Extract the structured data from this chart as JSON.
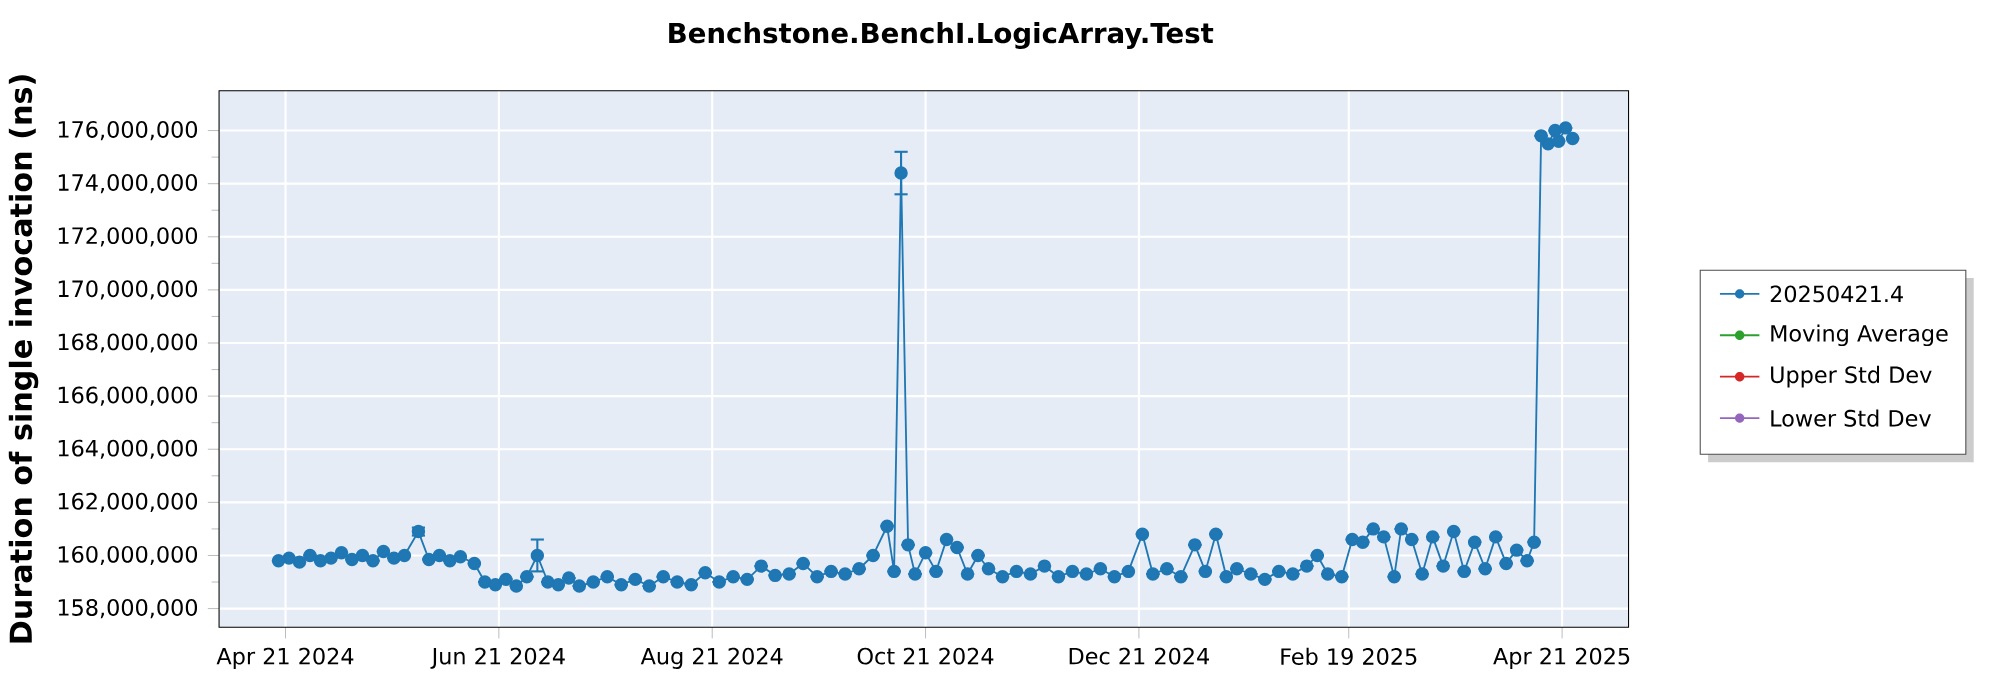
{
  "chart_data": {
    "type": "line",
    "title": "Benchstone.BenchI.LogicArray.Test",
    "ylabel": "Duration of single invocation (ns)",
    "x": [
      "2024-04-19",
      "2024-04-22",
      "2024-04-25",
      "2024-04-28",
      "2024-05-01",
      "2024-05-04",
      "2024-05-07",
      "2024-05-10",
      "2024-05-13",
      "2024-05-16",
      "2024-05-19",
      "2024-05-22",
      "2024-05-25",
      "2024-05-29",
      "2024-06-01",
      "2024-06-04",
      "2024-06-07",
      "2024-06-10",
      "2024-06-14",
      "2024-06-17",
      "2024-06-20",
      "2024-06-23",
      "2024-06-26",
      "2024-06-29",
      "2024-07-02",
      "2024-07-05",
      "2024-07-08",
      "2024-07-11",
      "2024-07-14",
      "2024-07-18",
      "2024-07-22",
      "2024-07-26",
      "2024-07-30",
      "2024-08-03",
      "2024-08-07",
      "2024-08-11",
      "2024-08-15",
      "2024-08-19",
      "2024-08-23",
      "2024-08-27",
      "2024-08-31",
      "2024-09-04",
      "2024-09-08",
      "2024-09-12",
      "2024-09-16",
      "2024-09-20",
      "2024-09-24",
      "2024-09-28",
      "2024-10-02",
      "2024-10-06",
      "2024-10-10",
      "2024-10-12",
      "2024-10-14",
      "2024-10-16",
      "2024-10-18",
      "2024-10-21",
      "2024-10-24",
      "2024-10-27",
      "2024-10-30",
      "2024-11-02",
      "2024-11-05",
      "2024-11-08",
      "2024-11-12",
      "2024-11-16",
      "2024-11-20",
      "2024-11-24",
      "2024-11-28",
      "2024-12-02",
      "2024-12-06",
      "2024-12-10",
      "2024-12-14",
      "2024-12-18",
      "2024-12-22",
      "2024-12-25",
      "2024-12-29",
      "2025-01-02",
      "2025-01-06",
      "2025-01-09",
      "2025-01-12",
      "2025-01-15",
      "2025-01-18",
      "2025-01-22",
      "2025-01-26",
      "2025-01-30",
      "2025-02-03",
      "2025-02-07",
      "2025-02-10",
      "2025-02-13",
      "2025-02-17",
      "2025-02-20",
      "2025-02-23",
      "2025-02-26",
      "2025-03-01",
      "2025-03-04",
      "2025-03-06",
      "2025-03-09",
      "2025-03-12",
      "2025-03-15",
      "2025-03-18",
      "2025-03-21",
      "2025-03-24",
      "2025-03-27",
      "2025-03-30",
      "2025-04-02",
      "2025-04-05",
      "2025-04-08",
      "2025-04-11",
      "2025-04-13",
      "2025-04-15",
      "2025-04-17",
      "2025-04-19",
      "2025-04-20",
      "2025-04-22",
      "2025-04-24"
    ],
    "series": [
      {
        "name": "20250421.4",
        "color": "#1f77b4",
        "values": [
          159800000,
          159900000,
          159750000,
          160000000,
          159800000,
          159900000,
          160100000,
          159850000,
          160000000,
          159800000,
          160150000,
          159900000,
          160000000,
          160900000,
          159850000,
          160000000,
          159800000,
          159950000,
          159700000,
          159000000,
          158900000,
          159100000,
          158850000,
          159200000,
          160000000,
          159000000,
          158900000,
          159150000,
          158850000,
          159000000,
          159200000,
          158900000,
          159100000,
          158850000,
          159200000,
          159000000,
          158900000,
          159350000,
          159000000,
          159200000,
          159100000,
          159600000,
          159250000,
          159300000,
          159700000,
          159200000,
          159400000,
          159300000,
          159500000,
          160000000,
          161100000,
          159400000,
          174400000,
          160400000,
          159300000,
          160100000,
          159400000,
          160600000,
          160300000,
          159300000,
          160000000,
          159500000,
          159200000,
          159400000,
          159300000,
          159600000,
          159200000,
          159400000,
          159300000,
          159500000,
          159200000,
          159400000,
          160800000,
          159300000,
          159500000,
          159200000,
          160400000,
          159400000,
          160800000,
          159200000,
          159500000,
          159300000,
          159100000,
          159400000,
          159300000,
          159600000,
          160000000,
          159300000,
          159200000,
          160600000,
          160500000,
          161000000,
          160700000,
          159200000,
          161000000,
          160600000,
          159300000,
          160700000,
          159600000,
          160900000,
          159400000,
          160500000,
          159500000,
          160700000,
          159700000,
          160200000,
          159800000,
          160500000,
          175800000,
          175500000,
          176000000,
          175600000,
          176100000,
          175700000
        ],
        "errors": [
          null,
          null,
          null,
          null,
          null,
          null,
          null,
          null,
          null,
          null,
          null,
          null,
          null,
          150000,
          null,
          null,
          null,
          null,
          null,
          null,
          null,
          null,
          null,
          null,
          600000,
          null,
          null,
          null,
          null,
          null,
          null,
          null,
          null,
          null,
          null,
          null,
          null,
          null,
          null,
          null,
          null,
          null,
          null,
          null,
          null,
          null,
          null,
          null,
          null,
          null,
          null,
          null,
          800000,
          null,
          null,
          null,
          null,
          null,
          null,
          null,
          null,
          null,
          null,
          null,
          null,
          null,
          null,
          null,
          null,
          null,
          null,
          null,
          null,
          null,
          null,
          null,
          null,
          null,
          null,
          null,
          null,
          null,
          null,
          null,
          null,
          null,
          null,
          null,
          null,
          null,
          null,
          null,
          null,
          null,
          null,
          null,
          null,
          null,
          null,
          null,
          null,
          null,
          null,
          null,
          null,
          null,
          null,
          null,
          null,
          null,
          null,
          null,
          null,
          null
        ]
      },
      {
        "name": "Moving Average",
        "color": "#2ca02c",
        "values": [
          null,
          null,
          null,
          null,
          null,
          null,
          null,
          null,
          null,
          null,
          null,
          null,
          null,
          null,
          null,
          null,
          null,
          null,
          null,
          null,
          null,
          null,
          null,
          null,
          null,
          null,
          null,
          null,
          null,
          null,
          null,
          null,
          null,
          null,
          null,
          null,
          null,
          null,
          null,
          null,
          null,
          null,
          null,
          null,
          null,
          null,
          null,
          null,
          null,
          null,
          null,
          null,
          null,
          null,
          null,
          null,
          null,
          null,
          null,
          null,
          null,
          null,
          null,
          null,
          null,
          null,
          null,
          null,
          null,
          null,
          null,
          null,
          null,
          null,
          null,
          null,
          null,
          null,
          null,
          null,
          null,
          null,
          null,
          null,
          null,
          null,
          null,
          null,
          null,
          null,
          null,
          null,
          null,
          null,
          null,
          null,
          null,
          null,
          null,
          null,
          null,
          null,
          null,
          null,
          null,
          null,
          null,
          null,
          null,
          null,
          null,
          null,
          null,
          null
        ]
      },
      {
        "name": "Upper Std Dev",
        "color": "#d62728",
        "values": [
          null,
          null,
          null,
          null,
          null,
          null,
          null,
          null,
          null,
          null,
          null,
          null,
          null,
          null,
          null,
          null,
          null,
          null,
          null,
          null,
          null,
          null,
          null,
          null,
          null,
          null,
          null,
          null,
          null,
          null,
          null,
          null,
          null,
          null,
          null,
          null,
          null,
          null,
          null,
          null,
          null,
          null,
          null,
          null,
          null,
          null,
          null,
          null,
          null,
          null,
          null,
          null,
          null,
          null,
          null,
          null,
          null,
          null,
          null,
          null,
          null,
          null,
          null,
          null,
          null,
          null,
          null,
          null,
          null,
          null,
          null,
          null,
          null,
          null,
          null,
          null,
          null,
          null,
          null,
          null,
          null,
          null,
          null,
          null,
          null,
          null,
          null,
          null,
          null,
          null,
          null,
          null,
          null,
          null,
          null,
          null,
          null,
          null,
          null,
          null,
          null,
          null,
          null,
          null,
          null,
          null,
          null,
          null,
          null,
          null,
          null,
          null,
          null,
          null
        ]
      },
      {
        "name": "Lower Std Dev",
        "color": "#9467bd",
        "values": [
          null,
          null,
          null,
          null,
          null,
          null,
          null,
          null,
          null,
          null,
          null,
          null,
          null,
          null,
          null,
          null,
          null,
          null,
          null,
          null,
          null,
          null,
          null,
          null,
          null,
          null,
          null,
          null,
          null,
          null,
          null,
          null,
          null,
          null,
          null,
          null,
          null,
          null,
          null,
          null,
          null,
          null,
          null,
          null,
          null,
          null,
          null,
          null,
          null,
          null,
          null,
          null,
          null,
          null,
          null,
          null,
          null,
          null,
          null,
          null,
          null,
          null,
          null,
          null,
          null,
          null,
          null,
          null,
          null,
          null,
          null,
          null,
          null,
          null,
          null,
          null,
          null,
          null,
          null,
          null,
          null,
          null,
          null,
          null,
          null,
          null,
          null,
          null,
          null,
          null,
          null,
          null,
          null,
          null,
          null,
          null,
          null,
          null,
          null,
          null,
          null,
          null,
          null,
          null,
          null,
          null,
          null,
          null,
          null,
          null,
          null,
          null,
          null,
          null
        ]
      }
    ],
    "xlim": [
      "2024-04-02",
      "2025-05-10"
    ],
    "xticks": [
      {
        "value": "2024-04-21",
        "label": "Apr 21 2024"
      },
      {
        "value": "2024-06-21",
        "label": "Jun 21 2024"
      },
      {
        "value": "2024-08-21",
        "label": "Aug 21 2024"
      },
      {
        "value": "2024-10-21",
        "label": "Oct 21 2024"
      },
      {
        "value": "2024-12-21",
        "label": "Dec 21 2024"
      },
      {
        "value": "2025-02-19",
        "label": "Feb 19 2025"
      },
      {
        "value": "2025-04-21",
        "label": "Apr 21 2025"
      }
    ],
    "ylim": [
      157300000,
      177500000
    ],
    "yticks": [
      {
        "value": 158000000,
        "label": "158,000,000"
      },
      {
        "value": 160000000,
        "label": "160,000,000"
      },
      {
        "value": 162000000,
        "label": "162,000,000"
      },
      {
        "value": 164000000,
        "label": "164,000,000"
      },
      {
        "value": 166000000,
        "label": "166,000,000"
      },
      {
        "value": 168000000,
        "label": "168,000,000"
      },
      {
        "value": 170000000,
        "label": "170,000,000"
      },
      {
        "value": 172000000,
        "label": "172,000,000"
      },
      {
        "value": 174000000,
        "label": "174,000,000"
      },
      {
        "value": 176000000,
        "label": "176,000,000"
      }
    ],
    "grid": true,
    "legend": "right",
    "marker": "circle",
    "line_style": "solid"
  }
}
